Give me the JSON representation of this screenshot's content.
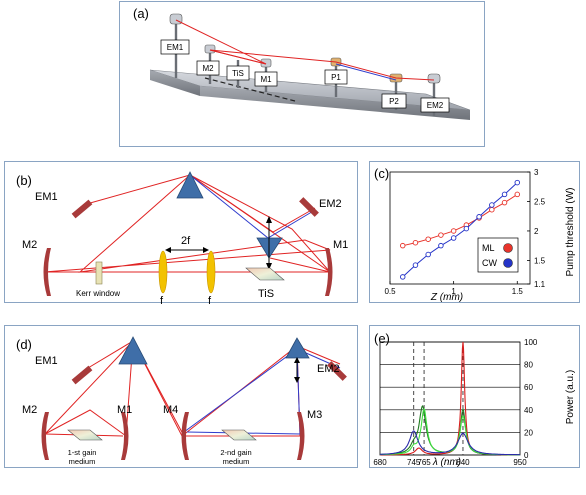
{
  "panel_a": {
    "label": "(a)",
    "boxes": [
      "EM1",
      "M2",
      "TiS",
      "M1",
      "P1",
      "P2",
      "EM2"
    ]
  },
  "panel_b": {
    "label": "(b)",
    "labels": {
      "em1": "EM1",
      "em2": "EM2",
      "m1": "M1",
      "m2": "M2",
      "two_f": "2f",
      "f_left": "f",
      "f_right": "f",
      "kerr": "Kerr window",
      "tis": "TiS"
    }
  },
  "panel_d": {
    "label": "(d)",
    "labels": {
      "em1": "EM1",
      "em2": "EM2",
      "m1": "M1",
      "m2": "M2",
      "m3": "M3",
      "m4": "M4",
      "gain1_a": "1-st gain",
      "gain1_b": "medium",
      "gain2_a": "2-nd gain",
      "gain2_b": "medium"
    }
  },
  "chart_data": [
    {
      "panel": "(c)",
      "type": "line",
      "xlabel": "Z (mm)",
      "ylabel": "Pump threshold (W)",
      "xlim": [
        0.5,
        1.6
      ],
      "ylim": [
        1.1,
        3.0
      ],
      "xticks": [
        0.5,
        1,
        1.5
      ],
      "yticks": [
        1.1,
        1.5,
        2,
        2.5,
        3
      ],
      "y_axis_side": "right",
      "legend_placement": "right",
      "series": [
        {
          "name": "ML",
          "color": "#e8342b",
          "x": [
            0.6,
            0.7,
            0.8,
            0.9,
            1.0,
            1.1,
            1.2,
            1.3,
            1.4,
            1.5
          ],
          "y": [
            1.75,
            1.8,
            1.86,
            1.93,
            2.0,
            2.1,
            2.22,
            2.36,
            2.48,
            2.62
          ]
        },
        {
          "name": "CW",
          "color": "#2433c8",
          "x": [
            0.6,
            0.7,
            0.8,
            0.9,
            1.0,
            1.1,
            1.2,
            1.3,
            1.4,
            1.5
          ],
          "y": [
            1.22,
            1.42,
            1.6,
            1.75,
            1.88,
            2.04,
            2.24,
            2.44,
            2.62,
            2.82
          ]
        }
      ]
    },
    {
      "panel": "(e)",
      "type": "line",
      "xlabel": "λ (nm)",
      "ylabel": "Power (a.u.)",
      "xlim": [
        680,
        950
      ],
      "ylim": [
        0,
        100
      ],
      "xticks": [
        680,
        745,
        765,
        840,
        950
      ],
      "yticks": [
        0,
        20,
        40,
        60,
        80,
        100
      ],
      "grid": true,
      "y_axis_side": "right",
      "dashed_markers_x": [
        745,
        765,
        840
      ],
      "series": [
        {
          "name": "",
          "color": "#d81e1e",
          "peaks": [
            {
              "x": 840,
              "y": 100,
              "w": 4
            },
            {
              "x": 755,
              "y": 6,
              "w": 8
            }
          ]
        },
        {
          "name": "",
          "color": "#1f7a1f",
          "peaks": [
            {
              "x": 762,
              "y": 42,
              "w": 8
            },
            {
              "x": 840,
              "y": 40,
              "w": 6
            },
            {
              "x": 745,
              "y": 6,
              "w": 8
            }
          ]
        },
        {
          "name": "",
          "color": "#3fe03f",
          "peaks": [
            {
              "x": 765,
              "y": 40,
              "w": 7
            },
            {
              "x": 840,
              "y": 34,
              "w": 7
            },
            {
              "x": 745,
              "y": 5,
              "w": 6
            }
          ]
        },
        {
          "name": "",
          "color": "#2a2aa8",
          "peaks": [
            {
              "x": 745,
              "y": 21,
              "w": 10
            },
            {
              "x": 840,
              "y": 19,
              "w": 12
            }
          ]
        }
      ]
    }
  ]
}
